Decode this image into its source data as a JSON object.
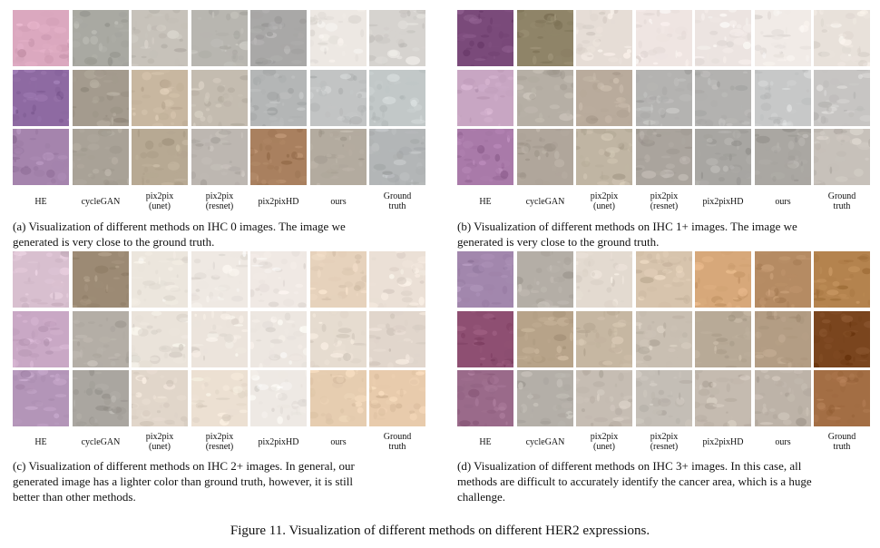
{
  "figure_caption": "Figure 11. Visualization of different methods on different HER2 expressions.",
  "columns": [
    {
      "line1": "HE",
      "line2": ""
    },
    {
      "line1": "cycleGAN",
      "line2": ""
    },
    {
      "line1": "pix2pix",
      "line2": "(unet)"
    },
    {
      "line1": "pix2pix",
      "line2": "(resnet)"
    },
    {
      "line1": "pix2pixHD",
      "line2": ""
    },
    {
      "line1": "ours",
      "line2": ""
    },
    {
      "line1": "Ground",
      "line2": "truth"
    }
  ],
  "panels": [
    {
      "id": "a",
      "caption_lines": [
        "(a) Visualization of different methods on IHC 0 images.  The image we",
        "generated is very close to the ground truth."
      ],
      "tiles": [
        [
          "#dba8bf",
          "#a9a9a2",
          "#c7c2ba",
          "#b8b6b0",
          "#a9a8a7",
          "#ede8e3",
          "#d6d3cf"
        ],
        [
          "#8e6aa2",
          "#a49b8e",
          "#c8b7a0",
          "#c4bcb0",
          "#b4b6b6",
          "#c2c4c4",
          "#c2c8c8"
        ],
        [
          "#a584ad",
          "#a9a297",
          "#b7a993",
          "#bdb7b1",
          "#a9805f",
          "#b3ab9f",
          "#b3b6b7"
        ]
      ]
    },
    {
      "id": "b",
      "caption_lines": [
        "(b) Visualization of different methods on IHC 1+ images.  The image we",
        "generated is very close to the ground truth."
      ],
      "tiles": [
        [
          "#7a4a7a",
          "#8f8468",
          "#e6ddd6",
          "#efe5e2",
          "#ece4e1",
          "#f1ebe7",
          "#e8e1da"
        ],
        [
          "#c8a6c3",
          "#b6afa5",
          "#b9ab9c",
          "#b4b3b1",
          "#b3b2b0",
          "#c7c8c8",
          "#c7c5c3"
        ],
        [
          "#a97aa9",
          "#b0a69b",
          "#c0b5a3",
          "#aaa49d",
          "#a8a6a2",
          "#aaa7a2",
          "#c7c1ba"
        ]
      ]
    },
    {
      "id": "c",
      "caption_lines": [
        "(c) Visualization of different methods on IHC 2+ images.  In general, our",
        "generated image has a lighter color than ground truth, however, it is still",
        "better than other methods."
      ],
      "tiles": [
        [
          "#d8bfcf",
          "#9c8a74",
          "#ece6dd",
          "#efe9e3",
          "#f0e9e4",
          "#e6d2bc",
          "#ebe0d6"
        ],
        [
          "#c9a8c5",
          "#b4aea6",
          "#eae3da",
          "#ece4dc",
          "#ede7e1",
          "#e6dcd0",
          "#e1d6cc"
        ],
        [
          "#b395b8",
          "#aaa6a0",
          "#e1d6ca",
          "#ece0d2",
          "#eee9e4",
          "#e6cdb0",
          "#e8cbac"
        ]
      ]
    },
    {
      "id": "d",
      "caption_lines": [
        "(d) Visualization of different methods on IHC 3+ images.  In this case, all",
        "methods are difficult to accurately identify the cancer area, which is a huge",
        "challenge."
      ],
      "tiles": [
        [
          "#a287ad",
          "#b4aea6",
          "#e3dad0",
          "#d7c4ad",
          "#d7a87a",
          "#b58b63",
          "#b4834e"
        ],
        [
          "#8e4f72",
          "#b7a389",
          "#c6b7a2",
          "#c9bfb2",
          "#b8aa97",
          "#b39d84",
          "#7a451e"
        ],
        [
          "#9a6a8a",
          "#b4afa8",
          "#c6bdb3",
          "#c4beb6",
          "#c5bbb0",
          "#bdb3a8",
          "#a36e44"
        ]
      ]
    }
  ]
}
